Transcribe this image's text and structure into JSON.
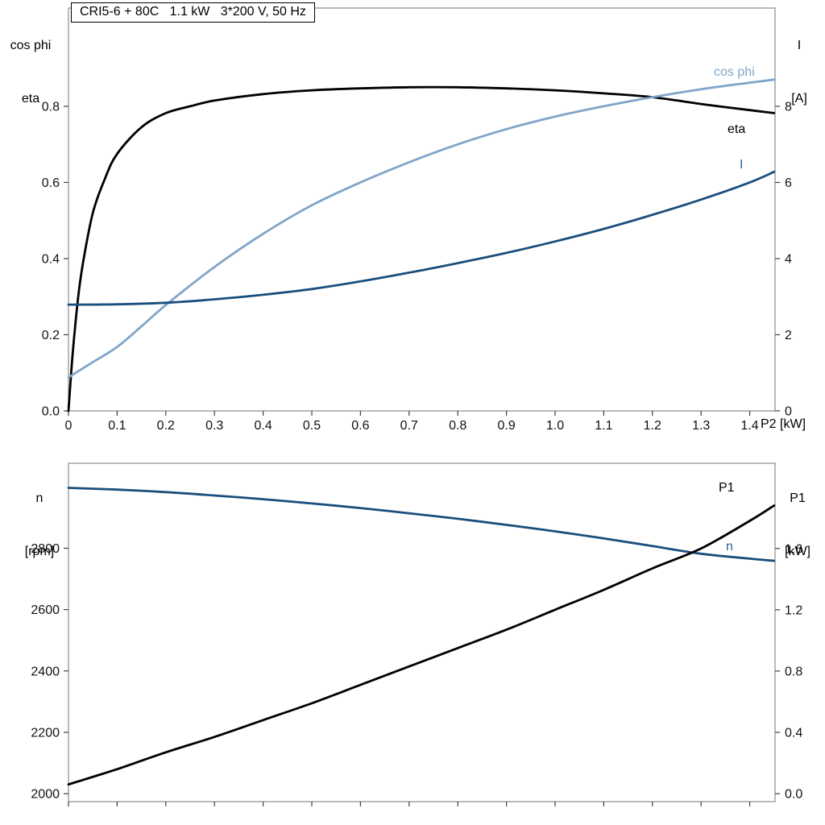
{
  "title_box": "CRI5-6 + 80C   1.1 kW   3*200 V, 50 Hz",
  "colors": {
    "black": "#000000",
    "light_blue": "#7fa5c9",
    "dark_blue": "#1a4e7d",
    "frame": "#8c8c8c",
    "tick": "#404040"
  },
  "chart_data": [
    {
      "type": "line",
      "title": "CRI5-6 + 80C   1.1 kW   3*200 V, 50 Hz",
      "grid": "off",
      "x_axis": {
        "label": "P2 [kW]",
        "range": [
          0,
          1.452
        ],
        "tick_values": [
          0,
          0.1,
          0.2,
          0.3,
          0.4,
          0.5,
          0.6,
          0.7,
          0.8,
          0.9,
          1.0,
          1.1,
          1.2,
          1.3,
          1.4
        ],
        "tick_labels": [
          "0",
          "0.1",
          "0.2",
          "0.3",
          "0.4",
          "0.5",
          "0.6",
          "0.7",
          "0.8",
          "0.9",
          "1.0",
          "1.1",
          "1.2",
          "1.3",
          "1.4"
        ]
      },
      "y_left": {
        "header": [
          "cos phi",
          "eta"
        ],
        "range": [
          0,
          1.058
        ],
        "tick_values": [
          0,
          0.2,
          0.4,
          0.6,
          0.8
        ],
        "tick_labels": [
          "0.0",
          "0.2",
          "0.4",
          "0.6",
          "0.8"
        ]
      },
      "y_right": {
        "header": [
          "I",
          "[A]"
        ],
        "range": [
          0,
          10.58
        ],
        "tick_values": [
          0,
          2,
          4,
          6,
          8
        ],
        "tick_labels": [
          "0",
          "2",
          "4",
          "6",
          "8"
        ]
      },
      "series": [
        {
          "name": "eta",
          "axis": "left",
          "color": "#000000",
          "x": [
            0,
            0.005,
            0.01,
            0.02,
            0.03,
            0.05,
            0.075,
            0.1,
            0.15,
            0.2,
            0.25,
            0.3,
            0.4,
            0.5,
            0.6,
            0.7,
            0.8,
            0.9,
            1.0,
            1.1,
            1.2,
            1.3,
            1.4,
            1.45
          ],
          "y": [
            0,
            0.09,
            0.17,
            0.3,
            0.39,
            0.52,
            0.61,
            0.675,
            0.745,
            0.782,
            0.8,
            0.815,
            0.832,
            0.842,
            0.847,
            0.85,
            0.85,
            0.847,
            0.842,
            0.834,
            0.824,
            0.806,
            0.79,
            0.782
          ]
        },
        {
          "name": "cos phi",
          "axis": "left",
          "color": "#7fa5c9",
          "x": [
            0,
            0.05,
            0.1,
            0.15,
            0.2,
            0.3,
            0.4,
            0.5,
            0.6,
            0.7,
            0.8,
            0.9,
            1.0,
            1.1,
            1.2,
            1.3,
            1.4,
            1.45
          ],
          "y": [
            0.088,
            0.128,
            0.168,
            0.222,
            0.278,
            0.378,
            0.465,
            0.54,
            0.6,
            0.653,
            0.7,
            0.74,
            0.773,
            0.8,
            0.824,
            0.845,
            0.862,
            0.87
          ]
        },
        {
          "name": "I",
          "axis": "right",
          "color": "#1a4e7d",
          "x": [
            0,
            0.1,
            0.2,
            0.3,
            0.4,
            0.5,
            0.6,
            0.7,
            0.8,
            0.9,
            1.0,
            1.1,
            1.2,
            1.3,
            1.4,
            1.45
          ],
          "y": [
            2.79,
            2.8,
            2.84,
            2.93,
            3.05,
            3.2,
            3.4,
            3.63,
            3.88,
            4.15,
            4.45,
            4.78,
            5.15,
            5.55,
            6.0,
            6.28
          ]
        }
      ]
    },
    {
      "type": "line",
      "title": "",
      "grid": "off",
      "x_axis": {
        "label": "",
        "range": [
          0,
          1.452
        ],
        "tick_values": [
          0,
          0.1,
          0.2,
          0.3,
          0.4,
          0.5,
          0.6,
          0.7,
          0.8,
          0.9,
          1.0,
          1.1,
          1.2,
          1.3,
          1.4
        ],
        "tick_labels": []
      },
      "y_left": {
        "header": [
          "n",
          "[rpm]"
        ],
        "range": [
          1974,
          3077
        ],
        "tick_values": [
          2000,
          2200,
          2400,
          2600,
          2800
        ],
        "tick_labels": [
          "2000",
          "2200",
          "2400",
          "2600",
          "2800"
        ]
      },
      "y_right": {
        "header": [
          "P1",
          "[kW]"
        ],
        "range": [
          -0.052,
          2.156
        ],
        "tick_values": [
          0,
          0.4,
          0.8,
          1.2,
          1.6
        ],
        "tick_labels": [
          "0.0",
          "0.4",
          "0.8",
          "1.2",
          "1.6"
        ]
      },
      "series": [
        {
          "name": "n",
          "axis": "left",
          "color": "#1a4e7d",
          "x": [
            0,
            0.1,
            0.2,
            0.3,
            0.4,
            0.5,
            0.6,
            0.7,
            0.8,
            0.9,
            1.0,
            1.1,
            1.2,
            1.3,
            1.4,
            1.45
          ],
          "y": [
            2997,
            2991,
            2983,
            2972,
            2960,
            2946,
            2931,
            2914,
            2896,
            2876,
            2855,
            2832,
            2807,
            2782,
            2766,
            2759
          ]
        },
        {
          "name": "P1",
          "axis": "right",
          "color": "#000000",
          "x": [
            0,
            0.1,
            0.2,
            0.3,
            0.4,
            0.5,
            0.6,
            0.7,
            0.8,
            0.9,
            1.0,
            1.1,
            1.2,
            1.3,
            1.4,
            1.45
          ],
          "y": [
            0.06,
            0.16,
            0.27,
            0.37,
            0.48,
            0.59,
            0.71,
            0.83,
            0.95,
            1.07,
            1.2,
            1.33,
            1.47,
            1.6,
            1.78,
            1.88
          ]
        }
      ]
    }
  ]
}
